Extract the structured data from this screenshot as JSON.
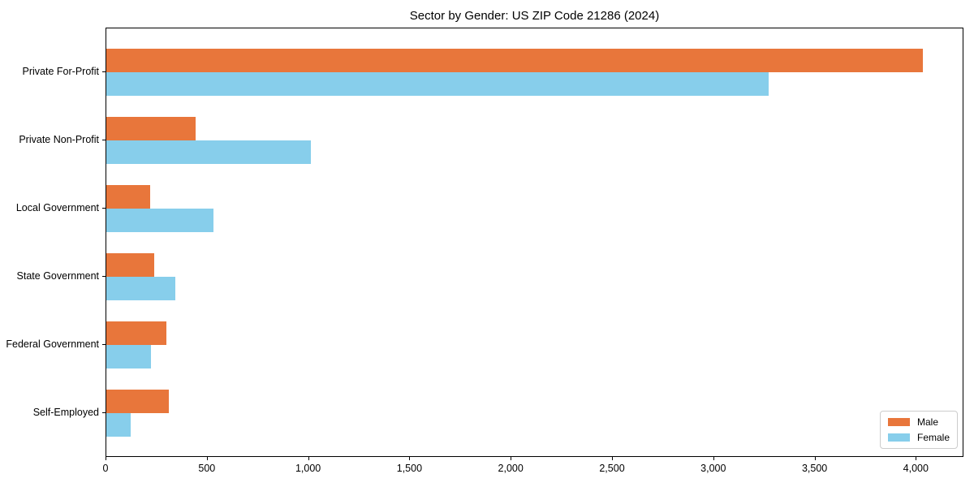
{
  "chart_data": {
    "type": "bar",
    "orientation": "horizontal",
    "title": "Sector by Gender: US ZIP Code 21286 (2024)",
    "categories": [
      "Private For-Profit",
      "Private Non-Profit",
      "Local Government",
      "State Government",
      "Federal Government",
      "Self-Employed"
    ],
    "series": [
      {
        "name": "Male",
        "color": "#e8763b",
        "values": [
          4030,
          440,
          215,
          235,
          295,
          310
        ]
      },
      {
        "name": "Female",
        "color": "#87ceeb",
        "values": [
          3270,
          1010,
          530,
          340,
          220,
          120
        ]
      }
    ],
    "xlabel": "",
    "ylabel": "",
    "xlim": [
      0,
      4235
    ],
    "xticks": [
      0,
      500,
      1000,
      1500,
      2000,
      2500,
      3000,
      3500,
      4000
    ],
    "xtick_labels": [
      "0",
      "500",
      "1,000",
      "1,500",
      "2,000",
      "2,500",
      "3,000",
      "3,500",
      "4,000"
    ],
    "legend": {
      "position": "lower right",
      "entries": [
        "Male",
        "Female"
      ]
    },
    "grid": false
  },
  "colors": {
    "background": "#ffffff",
    "axis": "#000000",
    "text": "#000000",
    "legend_border": "#cccccc",
    "male": "#e8763b",
    "female": "#87ceeb"
  }
}
